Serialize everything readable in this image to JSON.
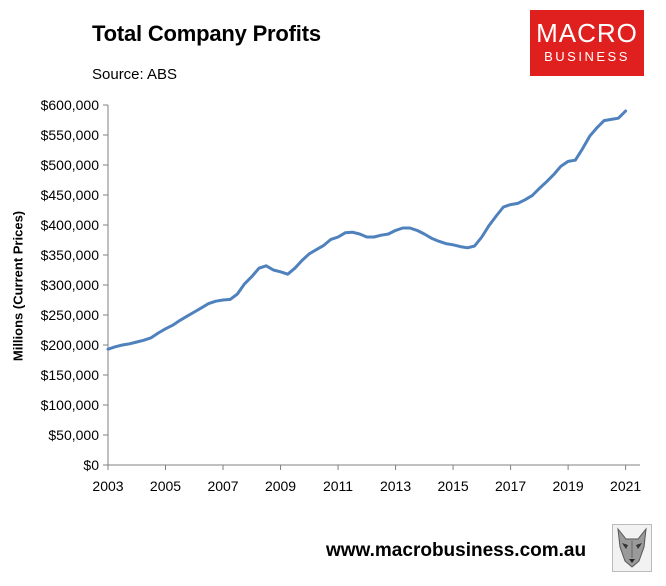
{
  "header": {
    "title": "Total Company Profits",
    "source": "Source: ABS"
  },
  "logo": {
    "line1": "MACRO",
    "line2": "BUSINESS",
    "bg": "#e0201f"
  },
  "footer": {
    "website": "www.macrobusiness.com.au",
    "mascot_icon": "wolf-icon"
  },
  "chart_data": {
    "type": "line",
    "title": "Total Company Profits",
    "xlabel": "",
    "ylabel": "Millions (Current Prices)",
    "ylim": [
      0,
      600000
    ],
    "xlim": [
      2003,
      2021.5
    ],
    "y_ticks": [
      0,
      50000,
      100000,
      150000,
      200000,
      250000,
      300000,
      350000,
      400000,
      450000,
      500000,
      550000,
      600000
    ],
    "y_tick_labels": [
      "$0",
      "$50,000",
      "$100,000",
      "$150,000",
      "$200,000",
      "$250,000",
      "$300,000",
      "$350,000",
      "$400,000",
      "$450,000",
      "$500,000",
      "$550,000",
      "$600,000"
    ],
    "x_ticks": [
      2003,
      2005,
      2007,
      2009,
      2011,
      2013,
      2015,
      2017,
      2019,
      2021
    ],
    "x_tick_labels": [
      "2003",
      "2005",
      "2007",
      "2009",
      "2011",
      "2013",
      "2015",
      "2017",
      "2019",
      "2021"
    ],
    "grid": false,
    "color": "#4f81bd",
    "series": [
      {
        "x": [
          2003.0,
          2003.25,
          2003.5,
          2003.75,
          2004.0,
          2004.25,
          2004.5,
          2004.75,
          2005.0,
          2005.25,
          2005.5,
          2005.75,
          2006.0,
          2006.25,
          2006.5,
          2006.75,
          2007.0,
          2007.25,
          2007.5,
          2007.75,
          2008.0,
          2008.25,
          2008.5,
          2008.75,
          2009.0,
          2009.25,
          2009.5,
          2009.75,
          2010.0,
          2010.25,
          2010.5,
          2010.75,
          2011.0,
          2011.25,
          2011.5,
          2011.75,
          2012.0,
          2012.25,
          2012.5,
          2012.75,
          2013.0,
          2013.25,
          2013.5,
          2013.75,
          2014.0,
          2014.25,
          2014.5,
          2014.75,
          2015.0,
          2015.25,
          2015.5,
          2015.75,
          2016.0,
          2016.25,
          2016.5,
          2016.75,
          2017.0,
          2017.25,
          2017.5,
          2017.75,
          2018.0,
          2018.25,
          2018.5,
          2018.75,
          2019.0,
          2019.25,
          2019.5,
          2019.75,
          2020.0,
          2020.25,
          2020.5,
          2020.75,
          2021.0
        ],
        "y": [
          193000,
          197000,
          200000,
          202000,
          205000,
          208000,
          212000,
          220000,
          227000,
          233000,
          241000,
          248000,
          255000,
          262000,
          269000,
          273000,
          275000,
          276000,
          285000,
          302000,
          314000,
          328000,
          332000,
          325000,
          322000,
          318000,
          328000,
          341000,
          352000,
          359000,
          366000,
          376000,
          380000,
          387000,
          388000,
          385000,
          380000,
          380000,
          383000,
          385000,
          391000,
          395000,
          395000,
          391000,
          385000,
          378000,
          373000,
          369000,
          367000,
          364000,
          362000,
          365000,
          380000,
          399000,
          415000,
          430000,
          434000,
          436000,
          442000,
          449000,
          461000,
          472000,
          484000,
          498000,
          506000,
          508000,
          527000,
          548000,
          562000,
          574000,
          576000,
          578000,
          590000
        ]
      }
    ]
  }
}
